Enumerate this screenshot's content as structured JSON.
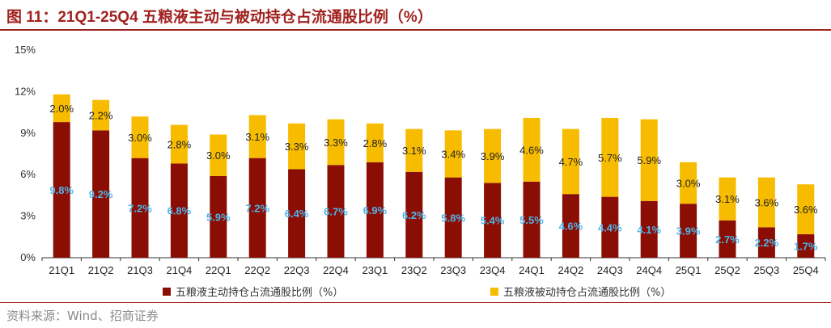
{
  "header": {
    "title": "图 11：21Q1-25Q4 五粮液主动与被动持仓占流通股比例（%）"
  },
  "footer": {
    "source": "资料来源：Wind、招商证券"
  },
  "colors": {
    "active": "#8b0e04",
    "passive": "#f7bc00",
    "active_label": "#4fb3e8",
    "accent": "#a0221f"
  },
  "chart_data": {
    "type": "bar",
    "stacked": true,
    "categories": [
      "21Q1",
      "21Q2",
      "21Q3",
      "21Q4",
      "22Q1",
      "22Q2",
      "22Q3",
      "22Q4",
      "23Q1",
      "23Q2",
      "23Q3",
      "23Q4",
      "24Q1",
      "24Q2",
      "24Q3",
      "24Q4",
      "25Q1",
      "25Q2",
      "25Q3",
      "25Q4"
    ],
    "series": [
      {
        "name": "五粮液主动持仓占流通股比例（%）",
        "values": [
          9.8,
          9.2,
          7.2,
          6.8,
          5.9,
          7.2,
          6.4,
          6.7,
          6.9,
          6.2,
          5.8,
          5.4,
          5.5,
          4.6,
          4.4,
          4.1,
          3.9,
          2.7,
          2.2,
          1.7
        ],
        "labels": [
          "9.8%",
          "9.2%",
          "7.2%",
          "6.8%",
          "5.9%",
          "7.2%",
          "6.4%",
          "6.7%",
          "6.9%",
          "6.2%",
          "5.8%",
          "5.4%",
          "5.5%",
          "4.6%",
          "4.4%",
          "4.1%",
          "3.9%",
          "2.7%",
          "2.2%",
          "1.7%"
        ]
      },
      {
        "name": "五粮液被动持仓占流通股比例（%）",
        "values": [
          2.0,
          2.2,
          3.0,
          2.8,
          3.0,
          3.1,
          3.3,
          3.3,
          2.8,
          3.1,
          3.4,
          3.9,
          4.6,
          4.7,
          5.7,
          5.9,
          3.0,
          3.1,
          3.6,
          3.6
        ],
        "labels": [
          "2.0%",
          "2.2%",
          "3.0%",
          "2.8%",
          "3.0%",
          "3.1%",
          "3.3%",
          "3.3%",
          "2.8%",
          "3.1%",
          "3.4%",
          "3.9%",
          "4.6%",
          "4.7%",
          "5.7%",
          "5.9%",
          "3.0%",
          "3.1%",
          "3.6%",
          "3.6%"
        ]
      }
    ],
    "yticks": [
      0,
      3,
      6,
      9,
      12,
      15
    ],
    "ytick_labels": [
      "0%",
      "3%",
      "6%",
      "9%",
      "12%",
      "15%"
    ],
    "ylim": [
      0,
      15
    ],
    "legend_position": "bottom"
  }
}
